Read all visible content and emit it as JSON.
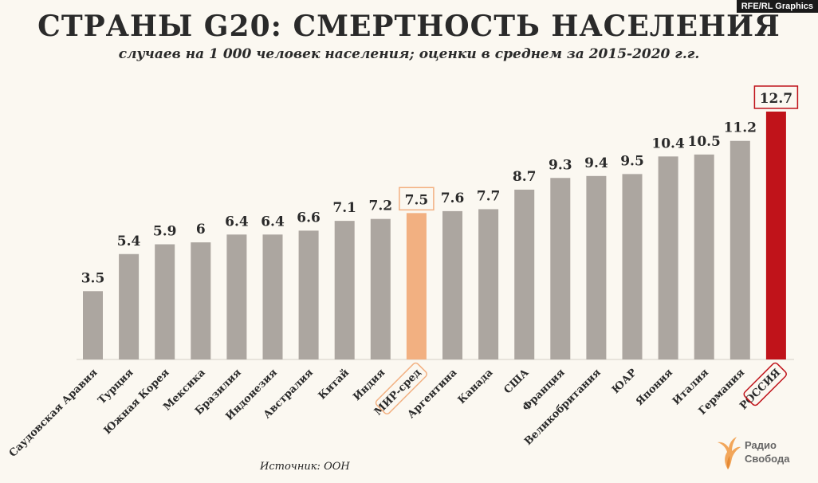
{
  "credit": "RFE/RL Graphics",
  "title": "СТРАНЫ G20: СМЕРТНОСТЬ НАСЕЛЕНИЯ",
  "subtitle": "случаев на 1 000 человек населения; оценки в среднем за 2015-2020 г.г.",
  "source": "Источник: ООН",
  "logo": {
    "line1": "Радио",
    "line2": "Свобода",
    "icon": "radio-svoboda-flame-icon"
  },
  "colors": {
    "bar": "#aca6a0",
    "world": "#f2b081",
    "russia": "#c0131a",
    "text": "#2a2a2a"
  },
  "chart_data": {
    "type": "bar",
    "title": "СТРАНЫ G20: СМЕРТНОСТЬ НАСЕЛЕНИЯ",
    "subtitle": "случаев на 1 000 человек населения; оценки в среднем за 2015-2020 г.г.",
    "categories": [
      "Саудовская Аравия",
      "Турция",
      "Южная Корея",
      "Мексика",
      "Бразилия",
      "Индонезия",
      "Австралия",
      "Китай",
      "Индия",
      "МИР-сред",
      "Аргентина",
      "Канада",
      "США",
      "Франция",
      "Великобритания",
      "ЮАР",
      "Япония",
      "Италия",
      "Германия",
      "РОССИЯ"
    ],
    "values": [
      3.5,
      5.4,
      5.9,
      6,
      6.4,
      6.4,
      6.6,
      7.1,
      7.2,
      7.5,
      7.6,
      7.7,
      8.7,
      9.3,
      9.4,
      9.5,
      10.4,
      10.5,
      11.2,
      12.7
    ],
    "value_labels": [
      "3.5",
      "5.4",
      "5.9",
      "6",
      "6.4",
      "6.4",
      "6.6",
      "7.1",
      "7.2",
      "7.5",
      "7.6",
      "7.7",
      "8.7",
      "9.3",
      "9.4",
      "9.5",
      "10.4",
      "10.5",
      "11.2",
      "12.7"
    ],
    "highlight": {
      "МИР-сред": "world",
      "РОССИЯ": "russia"
    },
    "xlabel": "",
    "ylabel": "",
    "ylim": [
      0,
      12.7
    ],
    "grid": false,
    "legend": "none"
  }
}
